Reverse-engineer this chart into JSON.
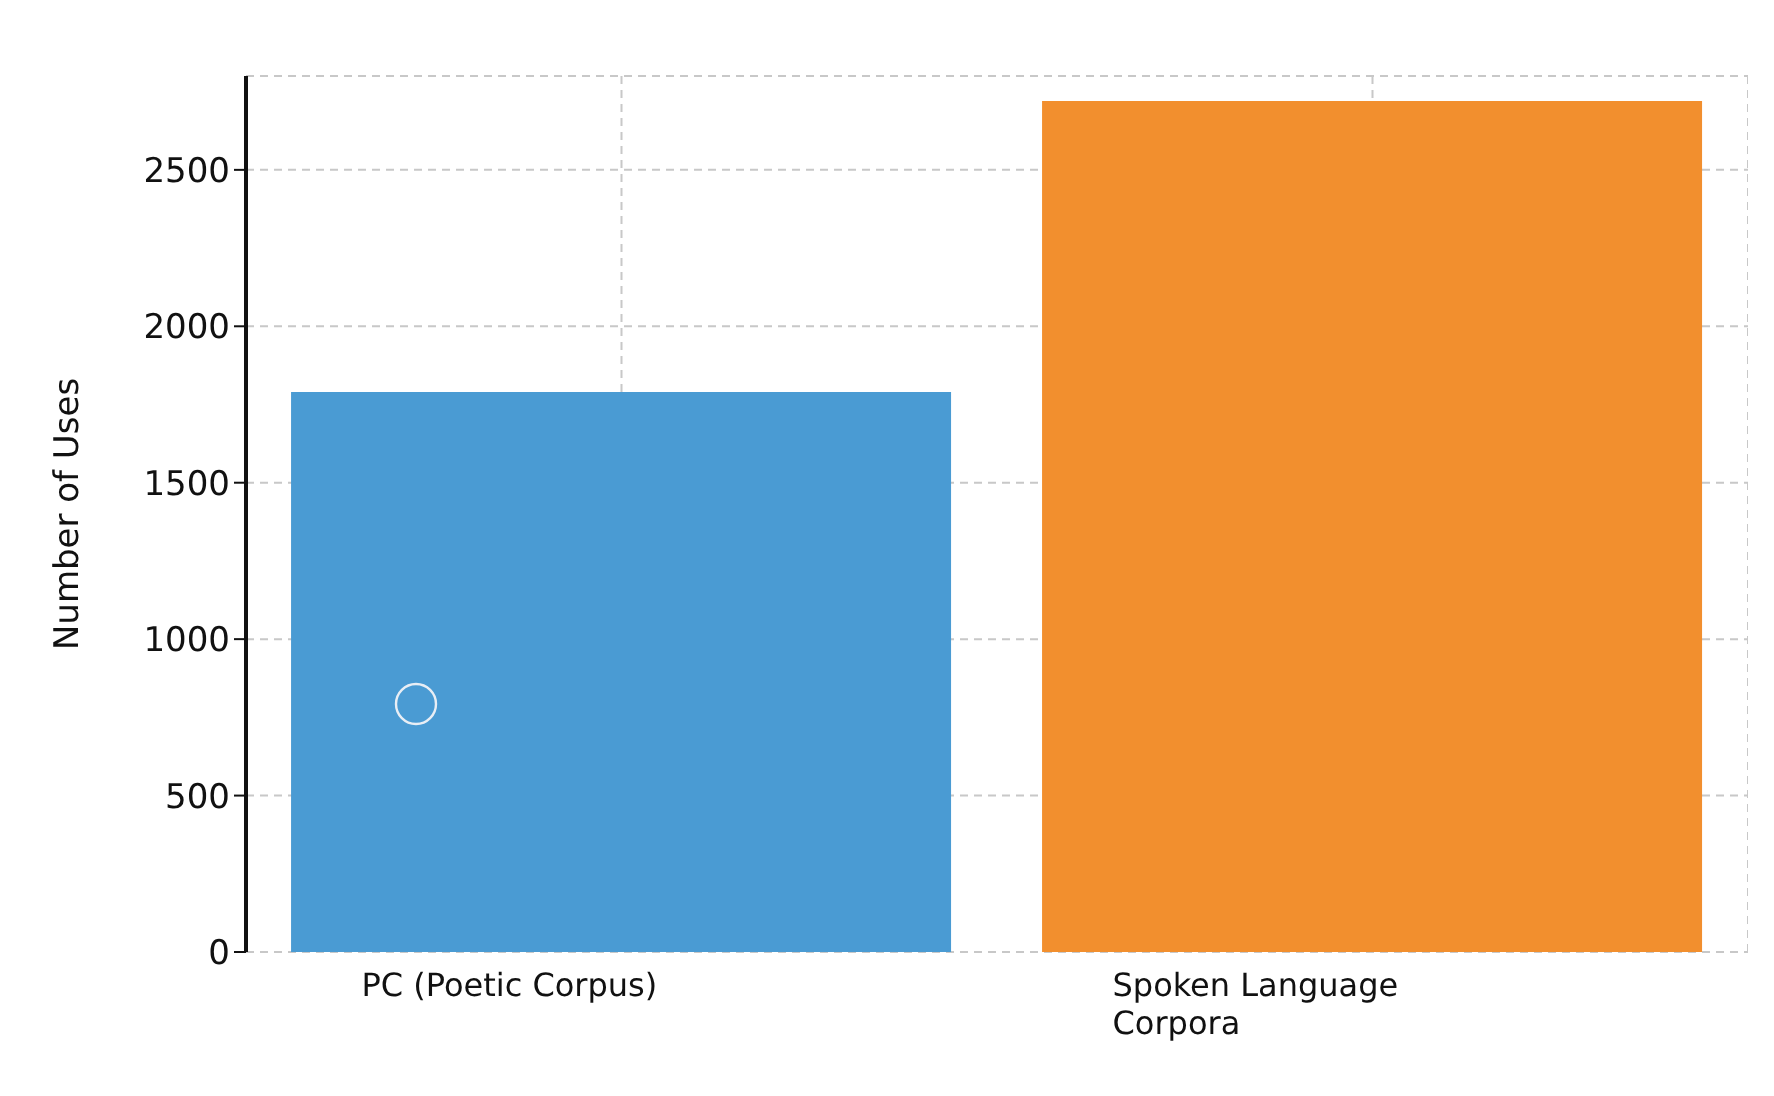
{
  "chart_data": {
    "type": "bar",
    "ylabel": "Number of Uses",
    "categories": [
      "PC (Poetic Corpus)",
      "Spoken Language Corpora"
    ],
    "values": [
      1790,
      2720
    ],
    "colors": [
      "#4a9bd3",
      "#f28f2e"
    ],
    "ylim": [
      0,
      2800
    ],
    "yticks": [
      0,
      500,
      1000,
      1500,
      2000,
      2500
    ],
    "grid": true
  }
}
